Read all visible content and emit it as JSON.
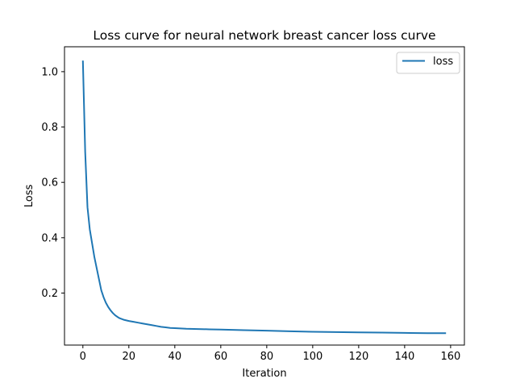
{
  "chart_data": {
    "type": "line",
    "title": "Loss curve for neural network breast cancer loss curve",
    "xlabel": "Iteration",
    "ylabel": "Loss",
    "xlim": [
      -8,
      166
    ],
    "ylim": [
      0.012,
      1.09
    ],
    "xticks": [
      0,
      20,
      40,
      60,
      80,
      100,
      120,
      140,
      160
    ],
    "xtick_labels": [
      "0",
      "20",
      "40",
      "60",
      "80",
      "100",
      "120",
      "140",
      "160"
    ],
    "yticks": [
      0.2,
      0.4,
      0.6,
      0.8,
      1.0
    ],
    "ytick_labels": [
      "0.2",
      "0.4",
      "0.6",
      "0.8",
      "1.0"
    ],
    "grid": false,
    "legend_position": "top-right",
    "series": [
      {
        "name": "loss",
        "color": "#1f77b4",
        "x": [
          0,
          1,
          2,
          3,
          4,
          5,
          6,
          7,
          8,
          9,
          10,
          11,
          12,
          13,
          14,
          15,
          16,
          18,
          20,
          22,
          24,
          26,
          28,
          30,
          32,
          34,
          36,
          38,
          40,
          45,
          50,
          55,
          60,
          70,
          80,
          90,
          100,
          110,
          120,
          130,
          140,
          150,
          158
        ],
        "y": [
          1.04,
          0.71,
          0.51,
          0.43,
          0.38,
          0.33,
          0.29,
          0.25,
          0.21,
          0.185,
          0.165,
          0.15,
          0.138,
          0.128,
          0.12,
          0.114,
          0.109,
          0.103,
          0.099,
          0.096,
          0.093,
          0.09,
          0.087,
          0.084,
          0.081,
          0.078,
          0.076,
          0.074,
          0.073,
          0.071,
          0.07,
          0.069,
          0.068,
          0.066,
          0.064,
          0.062,
          0.06,
          0.059,
          0.058,
          0.057,
          0.056,
          0.055,
          0.055
        ]
      }
    ]
  }
}
